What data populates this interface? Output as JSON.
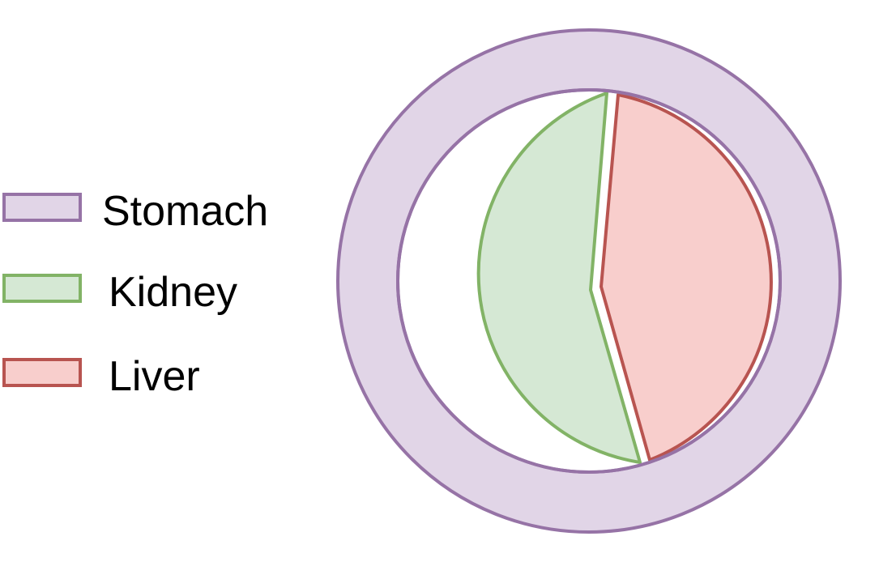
{
  "legend": {
    "items": [
      {
        "label": "Stomach",
        "fill": "#e1d5e7",
        "stroke": "#9673a6"
      },
      {
        "label": "Kidney",
        "fill": "#d5e8d4",
        "stroke": "#82b366"
      },
      {
        "label": "Liver",
        "fill": "#f8cecc",
        "stroke": "#b85450"
      }
    ]
  },
  "diagram": {
    "outer": {
      "fill": "#e1d5e7",
      "stroke": "#9673a6"
    },
    "left_part": {
      "fill": "#d5e8d4",
      "stroke": "#82b366"
    },
    "right_part": {
      "fill": "#f8cecc",
      "stroke": "#b85450"
    }
  }
}
